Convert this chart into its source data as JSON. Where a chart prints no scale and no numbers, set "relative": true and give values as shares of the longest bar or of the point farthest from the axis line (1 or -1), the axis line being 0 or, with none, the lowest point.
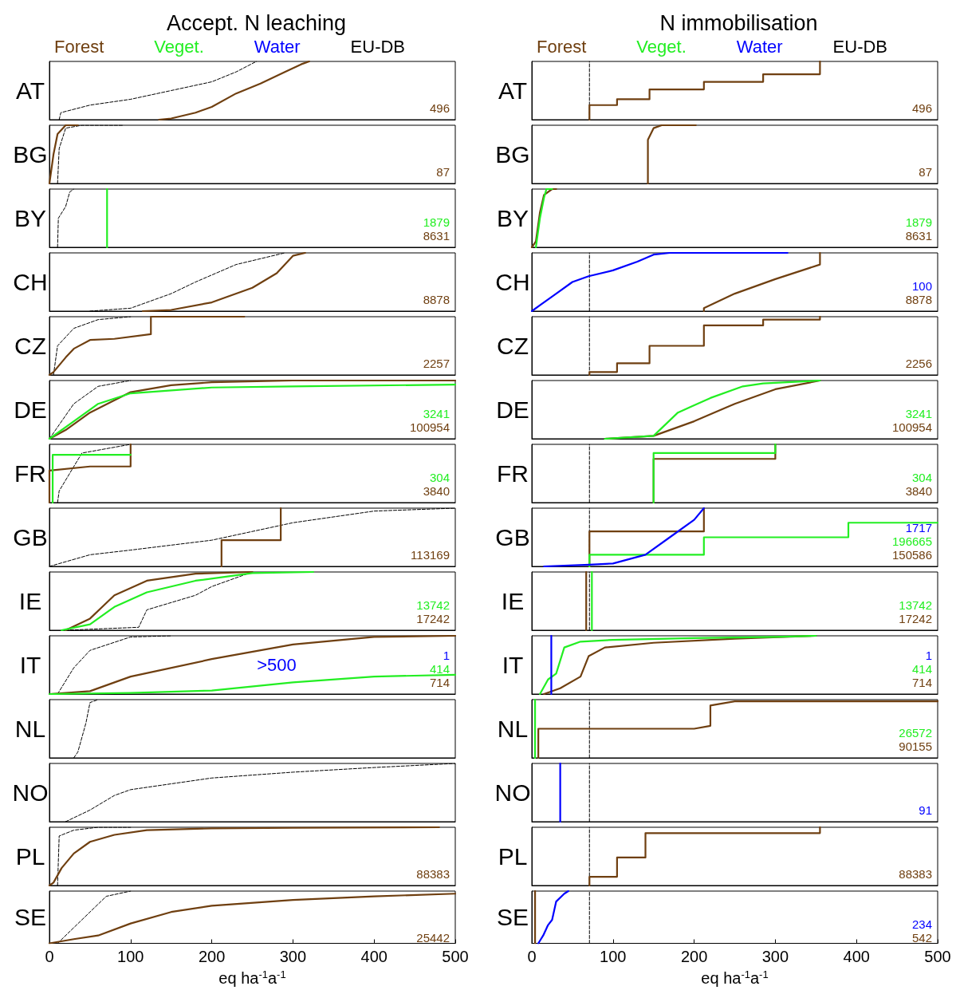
{
  "chart_data": [
    {
      "type": "line",
      "relative": true,
      "title": "Accept. N leaching",
      "legend": "top",
      "ylabel": "AT",
      "xlim": [
        0,
        500
      ],
      "tick_labels": false,
      "annotations": [
        "496"
      ],
      "series": [
        {
          "name": "Forest",
          "color": "#6f3f10",
          "x": [
            135,
            150,
            180,
            200,
            230,
            260,
            290,
            310,
            320
          ],
          "values": [
            0,
            0.02,
            0.12,
            0.22,
            0.45,
            0.62,
            0.82,
            0.95,
            1
          ]
        },
        {
          "name": "Veget.",
          "color": "#22ee22"
        },
        {
          "name": "Water",
          "color": "#0000ff"
        },
        {
          "name": "EU-DB",
          "color": "#000000",
          "line_style": "dashed",
          "x": [
            12,
            14,
            50,
            100,
            150,
            200,
            230,
            255
          ],
          "values": [
            0,
            0.12,
            0.25,
            0.35,
            0.5,
            0.65,
            0.82,
            1
          ]
        }
      ]
    },
    {
      "type": "line",
      "relative": true,
      "title": "N immobilisation",
      "legend": "top",
      "ylabel": "AT",
      "xlim": [
        0,
        500
      ],
      "tick_labels": false,
      "annotations": [
        "496"
      ],
      "series": [
        {
          "name": "Forest",
          "color": "#6f3f10",
          "x": [
            71,
            71,
            105,
            105,
            145,
            145,
            212,
            212,
            285,
            285,
            355,
            355
          ],
          "values": [
            0,
            0.25,
            0.25,
            0.35,
            0.35,
            0.52,
            0.52,
            0.65,
            0.65,
            0.78,
            0.78,
            1
          ]
        },
        {
          "name": "Veget.",
          "color": "#22ee22"
        },
        {
          "name": "Water",
          "color": "#0000ff"
        },
        {
          "name": "EU-DB",
          "color": "#000000",
          "line_style": "dashed",
          "x": [
            71,
            71
          ],
          "values": [
            0,
            1
          ]
        }
      ]
    },
    {
      "type": "line",
      "relative": true,
      "ylabel": "BG",
      "xlim": [
        0,
        500
      ],
      "tick_labels": false,
      "annotations": [
        "87"
      ],
      "series": [
        {
          "color": "#6f3f10",
          "x": [
            0,
            5,
            10,
            20,
            35
          ],
          "values": [
            0,
            0.5,
            0.85,
            1,
            1
          ]
        },
        {
          "color": "#000000",
          "line_style": "dashed",
          "x": [
            10,
            12,
            20,
            40,
            90
          ],
          "values": [
            0,
            0.6,
            0.95,
            1,
            1
          ]
        }
      ]
    },
    {
      "type": "line",
      "relative": true,
      "ylabel": "BG",
      "xlim": [
        0,
        500
      ],
      "tick_labels": false,
      "annotations": [
        "87"
      ],
      "series": [
        {
          "color": "#6f3f10",
          "x": [
            143,
            143,
            150,
            160,
            202
          ],
          "values": [
            0,
            0.75,
            0.95,
            1,
            1
          ]
        }
      ]
    },
    {
      "type": "line",
      "relative": true,
      "ylabel": "BY",
      "xlim": [
        0,
        500
      ],
      "tick_labels": false,
      "annotations": [
        "1879",
        "8631"
      ],
      "series": [
        {
          "color": "#22ee22",
          "x": [
            71,
            71
          ],
          "values": [
            0,
            1
          ]
        },
        {
          "color": "#6f3f10"
        },
        {
          "color": "#000000",
          "line_style": "dashed",
          "x": [
            10,
            11,
            20,
            25,
            30
          ],
          "values": [
            0,
            0.5,
            0.7,
            0.95,
            1
          ]
        }
      ]
    },
    {
      "type": "line",
      "relative": true,
      "ylabel": "BY",
      "xlim": [
        0,
        500
      ],
      "tick_labels": false,
      "annotations": [
        "1879",
        "8631"
      ],
      "series": [
        {
          "color": "#22ee22",
          "x": [
            5,
            10,
            15,
            18,
            25
          ],
          "values": [
            0,
            0.5,
            0.85,
            1,
            1
          ]
        },
        {
          "color": "#6f3f10",
          "x": [
            0,
            5,
            10,
            15,
            25,
            30
          ],
          "values": [
            0,
            0.1,
            0.6,
            0.9,
            1,
            1
          ]
        }
      ]
    },
    {
      "type": "line",
      "relative": true,
      "ylabel": "CH",
      "xlim": [
        0,
        500
      ],
      "tick_labels": false,
      "annotations": [
        "8878"
      ],
      "series": [
        {
          "color": "#6f3f10",
          "x": [
            115,
            150,
            200,
            250,
            280,
            300,
            315
          ],
          "values": [
            0,
            0.02,
            0.15,
            0.4,
            0.65,
            0.95,
            1
          ]
        },
        {
          "color": "#000000",
          "line_style": "dashed",
          "x": [
            50,
            100,
            150,
            180,
            230,
            290
          ],
          "values": [
            0,
            0.05,
            0.3,
            0.5,
            0.8,
            1
          ]
        }
      ]
    },
    {
      "type": "line",
      "relative": true,
      "ylabel": "CH",
      "xlim": [
        0,
        500
      ],
      "tick_labels": false,
      "annotations": [
        "100",
        "8878"
      ],
      "series": [
        {
          "color": "#0000ff",
          "x": [
            0,
            10,
            30,
            50,
            70,
            100,
            130,
            150,
            170,
            315
          ],
          "values": [
            0,
            0.1,
            0.3,
            0.5,
            0.6,
            0.7,
            0.85,
            0.97,
            1,
            1
          ]
        },
        {
          "color": "#6f3f10",
          "x": [
            212,
            212,
            250,
            300,
            355,
            355
          ],
          "values": [
            0,
            0.05,
            0.3,
            0.55,
            0.8,
            1
          ]
        },
        {
          "color": "#000000",
          "line_style": "dashed",
          "x": [
            71,
            71
          ],
          "values": [
            0,
            1
          ]
        }
      ]
    },
    {
      "type": "line",
      "relative": true,
      "ylabel": "CZ",
      "xlim": [
        0,
        500
      ],
      "tick_labels": false,
      "annotations": [
        "2257"
      ],
      "series": [
        {
          "color": "#6f3f10",
          "x": [
            0,
            5,
            20,
            30,
            50,
            80,
            125,
            125,
            240
          ],
          "values": [
            0,
            0.05,
            0.3,
            0.45,
            0.6,
            0.62,
            0.7,
            1,
            1
          ]
        },
        {
          "color": "#000000",
          "line_style": "dashed",
          "x": [
            5,
            10,
            30,
            60,
            100
          ],
          "values": [
            0,
            0.5,
            0.8,
            0.95,
            1
          ]
        }
      ]
    },
    {
      "type": "line",
      "relative": true,
      "ylabel": "CZ",
      "xlim": [
        0,
        500
      ],
      "tick_labels": false,
      "annotations": [
        "2256"
      ],
      "series": [
        {
          "color": "#6f3f10",
          "x": [
            71,
            71,
            105,
            105,
            145,
            145,
            212,
            212,
            285,
            285,
            355,
            355
          ],
          "values": [
            0,
            0.05,
            0.05,
            0.2,
            0.2,
            0.5,
            0.5,
            0.85,
            0.85,
            0.95,
            0.95,
            1
          ]
        },
        {
          "color": "#000000",
          "line_style": "dashed",
          "x": [
            71,
            71
          ],
          "values": [
            0,
            1
          ]
        }
      ]
    },
    {
      "type": "line",
      "relative": true,
      "ylabel": "DE",
      "xlim": [
        0,
        500
      ],
      "tick_labels": false,
      "annotations": [
        "3241",
        "100954"
      ],
      "series": [
        {
          "color": "#22ee22",
          "x": [
            0,
            30,
            60,
            100,
            200,
            300,
            500
          ],
          "values": [
            0,
            0.3,
            0.6,
            0.78,
            0.88,
            0.9,
            0.93
          ]
        },
        {
          "color": "#6f3f10",
          "x": [
            0,
            20,
            50,
            100,
            150,
            200,
            300,
            500
          ],
          "values": [
            0,
            0.15,
            0.45,
            0.8,
            0.92,
            0.97,
            1,
            1
          ]
        },
        {
          "color": "#000000",
          "line_style": "dashed",
          "x": [
            0,
            10,
            30,
            60,
            100
          ],
          "values": [
            0,
            0.2,
            0.6,
            0.9,
            1
          ]
        }
      ]
    },
    {
      "type": "line",
      "relative": true,
      "ylabel": "DE",
      "xlim": [
        0,
        500
      ],
      "tick_labels": false,
      "annotations": [
        "3241",
        "100954"
      ],
      "series": [
        {
          "color": "#22ee22",
          "x": [
            90,
            150,
            180,
            220,
            260,
            285,
            355
          ],
          "values": [
            0,
            0.05,
            0.45,
            0.7,
            0.9,
            0.95,
            1
          ]
        },
        {
          "color": "#6f3f10",
          "x": [
            90,
            150,
            200,
            250,
            300,
            355
          ],
          "values": [
            0,
            0.05,
            0.3,
            0.6,
            0.85,
            1
          ]
        }
      ]
    },
    {
      "type": "line",
      "relative": true,
      "ylabel": "FR",
      "xlim": [
        0,
        500
      ],
      "tick_labels": false,
      "annotations": [
        "304",
        "3840"
      ],
      "series": [
        {
          "color": "#22ee22",
          "x": [
            4,
            4,
            100
          ],
          "values": [
            0,
            0.82,
            0.82
          ]
        },
        {
          "color": "#6f3f10",
          "x": [
            0,
            0,
            50,
            100,
            100
          ],
          "values": [
            0,
            0.55,
            0.62,
            0.62,
            1
          ]
        },
        {
          "color": "#000000",
          "line_style": "dashed",
          "x": [
            10,
            12,
            40,
            100
          ],
          "values": [
            0,
            0.2,
            0.85,
            1
          ]
        }
      ]
    },
    {
      "type": "line",
      "relative": true,
      "ylabel": "FR",
      "xlim": [
        0,
        500
      ],
      "tick_labels": false,
      "annotations": [
        "304",
        "3840"
      ],
      "series": [
        {
          "color": "#22ee22",
          "x": [
            150,
            150,
            300,
            300
          ],
          "values": [
            0,
            0.85,
            0.85,
            1
          ]
        },
        {
          "color": "#6f3f10",
          "x": [
            150,
            150,
            300,
            300
          ],
          "values": [
            0,
            0.75,
            0.75,
            1
          ]
        },
        {
          "color": "#000000",
          "line_style": "dashed",
          "x": [
            71,
            71
          ],
          "values": [
            0,
            1
          ]
        }
      ]
    },
    {
      "type": "line",
      "relative": true,
      "ylabel": "GB",
      "xlim": [
        0,
        500
      ],
      "tick_labels": false,
      "annotations": [
        "113169"
      ],
      "series": [
        {
          "color": "#6f3f10",
          "x": [
            212,
            212,
            285,
            285
          ],
          "values": [
            0,
            0.45,
            0.45,
            1
          ]
        },
        {
          "color": "#000000",
          "line_style": "dashed",
          "x": [
            0,
            50,
            100,
            200,
            300,
            400,
            500
          ],
          "values": [
            0,
            0.2,
            0.28,
            0.45,
            0.75,
            0.95,
            1
          ]
        }
      ]
    },
    {
      "type": "line",
      "relative": true,
      "ylabel": "GB",
      "xlim": [
        0,
        500
      ],
      "tick_labels": false,
      "annotations": [
        "1717",
        "196665",
        "150586"
      ],
      "series": [
        {
          "color": "#0000ff",
          "x": [
            15,
            71,
            100,
            140,
            170,
            200,
            212
          ],
          "values": [
            0,
            0.03,
            0.05,
            0.2,
            0.5,
            0.8,
            1
          ]
        },
        {
          "color": "#22ee22",
          "x": [
            71,
            71,
            212,
            212,
            390,
            390,
            500
          ],
          "values": [
            0,
            0.2,
            0.2,
            0.5,
            0.5,
            0.75,
            0.75
          ]
        },
        {
          "color": "#6f3f10",
          "x": [
            71,
            71,
            212,
            212
          ],
          "values": [
            0,
            0.6,
            0.6,
            1
          ]
        },
        {
          "color": "#000000",
          "line_style": "dashed",
          "x": [
            71,
            71
          ],
          "values": [
            0,
            1
          ]
        }
      ]
    },
    {
      "type": "line",
      "relative": true,
      "ylabel": "IE",
      "xlim": [
        0,
        500
      ],
      "tick_labels": false,
      "annotations": [
        "13742",
        "17242"
      ],
      "series": [
        {
          "color": "#22ee22",
          "x": [
            15,
            50,
            80,
            120,
            180,
            250,
            325
          ],
          "values": [
            0,
            0.1,
            0.4,
            0.65,
            0.85,
            0.98,
            1
          ]
        },
        {
          "color": "#6f3f10",
          "x": [
            20,
            50,
            80,
            120,
            180,
            250
          ],
          "values": [
            0,
            0.2,
            0.6,
            0.85,
            0.97,
            1
          ]
        },
        {
          "color": "#000000",
          "line_style": "dashed",
          "x": [
            20,
            110,
            120,
            180,
            200,
            250
          ],
          "values": [
            0,
            0.05,
            0.35,
            0.6,
            0.75,
            1
          ]
        }
      ]
    },
    {
      "type": "line",
      "relative": true,
      "ylabel": "IE",
      "xlim": [
        0,
        500
      ],
      "tick_labels": false,
      "annotations": [
        "13742",
        "17242"
      ],
      "series": [
        {
          "color": "#22ee22",
          "x": [
            74,
            74
          ],
          "values": [
            0,
            1
          ]
        },
        {
          "color": "#6f3f10",
          "x": [
            67,
            67
          ],
          "values": [
            0,
            1
          ]
        },
        {
          "color": "#000000",
          "line_style": "dashed",
          "x": [
            71,
            71
          ],
          "values": [
            0,
            1
          ]
        }
      ]
    },
    {
      "type": "line",
      "relative": true,
      "ylabel": "IT",
      "xlim": [
        0,
        500
      ],
      "tick_labels": false,
      "annotations": [
        "1",
        "414",
        "714",
        ">500"
      ],
      "series": [
        {
          "color": "#0000ff"
        },
        {
          "color": "#22ee22",
          "x": [
            0,
            100,
            200,
            300,
            400,
            500
          ],
          "values": [
            0,
            0.02,
            0.06,
            0.2,
            0.3,
            0.33
          ]
        },
        {
          "color": "#6f3f10",
          "x": [
            0,
            50,
            100,
            200,
            300,
            400,
            500
          ],
          "values": [
            0,
            0.05,
            0.3,
            0.6,
            0.85,
            0.98,
            1
          ]
        },
        {
          "color": "#000000",
          "line_style": "dashed",
          "x": [
            10,
            30,
            50,
            100,
            150
          ],
          "values": [
            0,
            0.45,
            0.75,
            0.98,
            1
          ]
        }
      ]
    },
    {
      "type": "line",
      "relative": true,
      "ylabel": "IT",
      "xlim": [
        0,
        500
      ],
      "tick_labels": false,
      "annotations": [
        "1",
        "414",
        "714"
      ],
      "series": [
        {
          "color": "#0000ff",
          "x": [
            24,
            24
          ],
          "values": [
            0,
            1
          ]
        },
        {
          "color": "#22ee22",
          "x": [
            10,
            20,
            30,
            40,
            60,
            100,
            200,
            300,
            350
          ],
          "values": [
            0,
            0.25,
            0.35,
            0.8,
            0.9,
            0.93,
            0.96,
            0.98,
            1
          ]
        },
        {
          "color": "#6f3f10",
          "x": [
            15,
            35,
            60,
            70,
            90,
            150,
            250,
            350
          ],
          "values": [
            0,
            0.1,
            0.3,
            0.65,
            0.8,
            0.88,
            0.95,
            1
          ]
        }
      ]
    },
    {
      "type": "line",
      "relative": true,
      "ylabel": "NL",
      "xlim": [
        0,
        500
      ],
      "tick_labels": false,
      "series": [
        {
          "color": "#000000",
          "line_style": "dashed",
          "x": [
            30,
            35,
            45,
            50,
            60
          ],
          "values": [
            0,
            0.1,
            0.6,
            0.95,
            1
          ]
        }
      ]
    },
    {
      "type": "line",
      "relative": true,
      "ylabel": "NL",
      "xlim": [
        0,
        500
      ],
      "tick_labels": false,
      "annotations": [
        "26572",
        "90155"
      ],
      "series": [
        {
          "color": "#22ee22",
          "x": [
            4,
            4
          ],
          "values": [
            0,
            1
          ]
        },
        {
          "color": "#6f3f10",
          "x": [
            8,
            8,
            200,
            220,
            220,
            250,
            500
          ],
          "values": [
            0,
            0.5,
            0.5,
            0.55,
            0.9,
            0.97,
            0.97
          ]
        },
        {
          "color": "#000000",
          "line_style": "dashed",
          "x": [
            71,
            71
          ],
          "values": [
            0,
            1
          ]
        }
      ]
    },
    {
      "type": "line",
      "relative": true,
      "ylabel": "NO",
      "xlim": [
        0,
        500
      ],
      "tick_labels": false,
      "series": [
        {
          "color": "#000000",
          "line_style": "dashed",
          "x": [
            20,
            50,
            80,
            100,
            200,
            300,
            400,
            500
          ],
          "values": [
            0,
            0.2,
            0.45,
            0.55,
            0.75,
            0.85,
            0.93,
            1
          ]
        }
      ]
    },
    {
      "type": "line",
      "relative": true,
      "ylabel": "NO",
      "xlim": [
        0,
        500
      ],
      "tick_labels": false,
      "annotations": [
        "91"
      ],
      "series": [
        {
          "color": "#0000ff",
          "x": [
            35,
            35
          ],
          "values": [
            0,
            1
          ]
        },
        {
          "color": "#000000",
          "line_style": "dashed",
          "x": [
            71,
            71
          ],
          "values": [
            0,
            1
          ]
        }
      ]
    },
    {
      "type": "line",
      "relative": true,
      "ylabel": "PL",
      "xlim": [
        0,
        500
      ],
      "tick_labels": false,
      "annotations": [
        "88383"
      ],
      "series": [
        {
          "color": "#6f3f10",
          "x": [
            0,
            5,
            15,
            30,
            50,
            80,
            120,
            200,
            300,
            480
          ],
          "values": [
            0,
            0.05,
            0.3,
            0.55,
            0.75,
            0.87,
            0.95,
            0.98,
            0.99,
            1
          ]
        },
        {
          "color": "#000000",
          "line_style": "dashed",
          "x": [
            10,
            12,
            30,
            60,
            100
          ],
          "values": [
            0,
            0.85,
            0.95,
            1,
            1
          ]
        }
      ]
    },
    {
      "type": "line",
      "relative": true,
      "ylabel": "PL",
      "xlim": [
        0,
        500
      ],
      "tick_labels": false,
      "annotations": [
        "88383"
      ],
      "series": [
        {
          "color": "#6f3f10",
          "x": [
            71,
            71,
            105,
            105,
            140,
            140,
            355,
            355
          ],
          "values": [
            0,
            0.15,
            0.15,
            0.48,
            0.48,
            0.9,
            0.9,
            1
          ]
        },
        {
          "color": "#000000",
          "line_style": "dashed",
          "x": [
            71,
            71
          ],
          "values": [
            0,
            1
          ]
        }
      ]
    },
    {
      "type": "line",
      "relative": true,
      "ylabel": "SE",
      "xlabel": "eq ha$^{-1}$a$^{-1}$",
      "xlim": [
        0,
        500
      ],
      "xticks": [
        0,
        100,
        200,
        300,
        400,
        500
      ],
      "tick_labels": "x",
      "annotations": [
        "25442"
      ],
      "series": [
        {
          "color": "#6f3f10",
          "x": [
            0,
            30,
            60,
            100,
            150,
            200,
            300,
            400,
            500
          ],
          "values": [
            0,
            0.08,
            0.15,
            0.38,
            0.6,
            0.72,
            0.83,
            0.9,
            0.95
          ]
        },
        {
          "color": "#000000",
          "line_style": "dashed",
          "x": [
            10,
            30,
            50,
            70,
            100
          ],
          "values": [
            0,
            0.3,
            0.6,
            0.9,
            1
          ]
        }
      ]
    },
    {
      "type": "line",
      "relative": true,
      "ylabel": "SE",
      "xlabel": "eq ha$^{-1}$a$^{-1}$",
      "xlim": [
        0,
        500
      ],
      "xticks": [
        0,
        100,
        200,
        300,
        400,
        500
      ],
      "tick_labels": "x",
      "annotations": [
        "234",
        "542"
      ],
      "series": [
        {
          "color": "#0000ff",
          "x": [
            8,
            10,
            14,
            20,
            25,
            30,
            40,
            45
          ],
          "values": [
            0,
            0.05,
            0.15,
            0.35,
            0.45,
            0.8,
            0.95,
            1
          ]
        },
        {
          "color": "#6f3f10",
          "x": [
            4,
            4
          ],
          "values": [
            0,
            1
          ]
        },
        {
          "color": "#000000",
          "line_style": "dashed",
          "x": [
            71,
            71
          ],
          "values": [
            0,
            1
          ]
        }
      ]
    }
  ]
}
